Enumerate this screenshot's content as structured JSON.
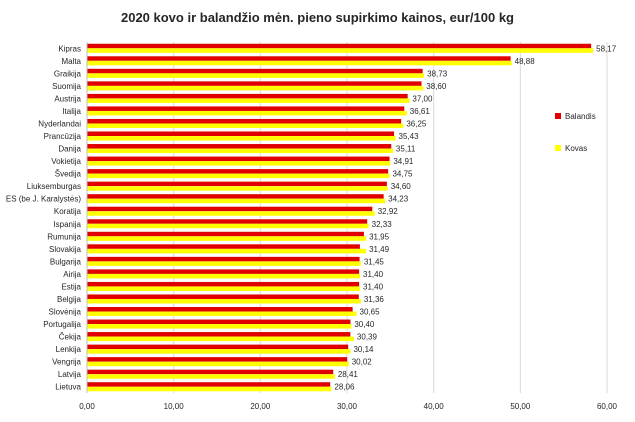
{
  "chart_data": {
    "type": "bar",
    "orientation": "horizontal",
    "title": "2020 kovo ir balandžio mėn. pieno supirkimo kainos, eur/100 kg",
    "categories": [
      "Kipras",
      "Malta",
      "Graikija",
      "Suomija",
      "Austrija",
      "Italija",
      "Nyderlandai",
      "Prancūzija",
      "Danija",
      "Vokietija",
      "Švedija",
      "Liuksemburgas",
      "ES (be J. Karalystės)",
      "Koratija",
      "Ispanija",
      "Rumunija",
      "Slovakija",
      "Bulgarija",
      "Airija",
      "Estija",
      "Belgija",
      "Slovėnija",
      "Portugalija",
      "Čekija",
      "Lenkija",
      "Vengrija",
      "Latvija",
      "Lietuva"
    ],
    "series": [
      {
        "name": "Balandis",
        "color": "#E00000",
        "values": [
          58.17,
          48.88,
          38.73,
          38.6,
          37.0,
          36.61,
          36.25,
          35.43,
          35.11,
          34.91,
          34.75,
          34.6,
          34.23,
          32.92,
          32.33,
          31.95,
          31.49,
          31.45,
          31.4,
          31.4,
          31.36,
          30.65,
          30.4,
          30.39,
          30.14,
          30.02,
          28.41,
          28.06
        ]
      },
      {
        "name": "Kovas",
        "color": "#FFFF00",
        "values": [
          58.4,
          49.0,
          38.9,
          38.8,
          37.2,
          36.9,
          36.5,
          35.6,
          35.3,
          35.0,
          34.9,
          34.7,
          34.4,
          33.2,
          32.5,
          32.2,
          32.2,
          31.6,
          31.5,
          31.5,
          31.6,
          31.1,
          30.5,
          30.8,
          30.4,
          30.2,
          28.6,
          28.2
        ]
      }
    ],
    "value_labels": [
      "58,17",
      "48,88",
      "38,73",
      "38,60",
      "37,00",
      "36,61",
      "36,25",
      "35,43",
      "35,11",
      "34,91",
      "34,75",
      "34,60",
      "34,23",
      "32,92",
      "32,33",
      "31,95",
      "31,49",
      "31,45",
      "31,40",
      "31,40",
      "31,36",
      "30,65",
      "30,40",
      "30,39",
      "30,14",
      "30,02",
      "28,41",
      "28,06"
    ],
    "x_ticks": [
      0,
      10,
      20,
      30,
      40,
      50,
      60
    ],
    "x_tick_labels": [
      "0,00",
      "10,00",
      "20,00",
      "30,00",
      "40,00",
      "50,00",
      "60,00"
    ],
    "xlim": [
      0,
      60
    ],
    "grid": true,
    "legend_position": "right"
  }
}
